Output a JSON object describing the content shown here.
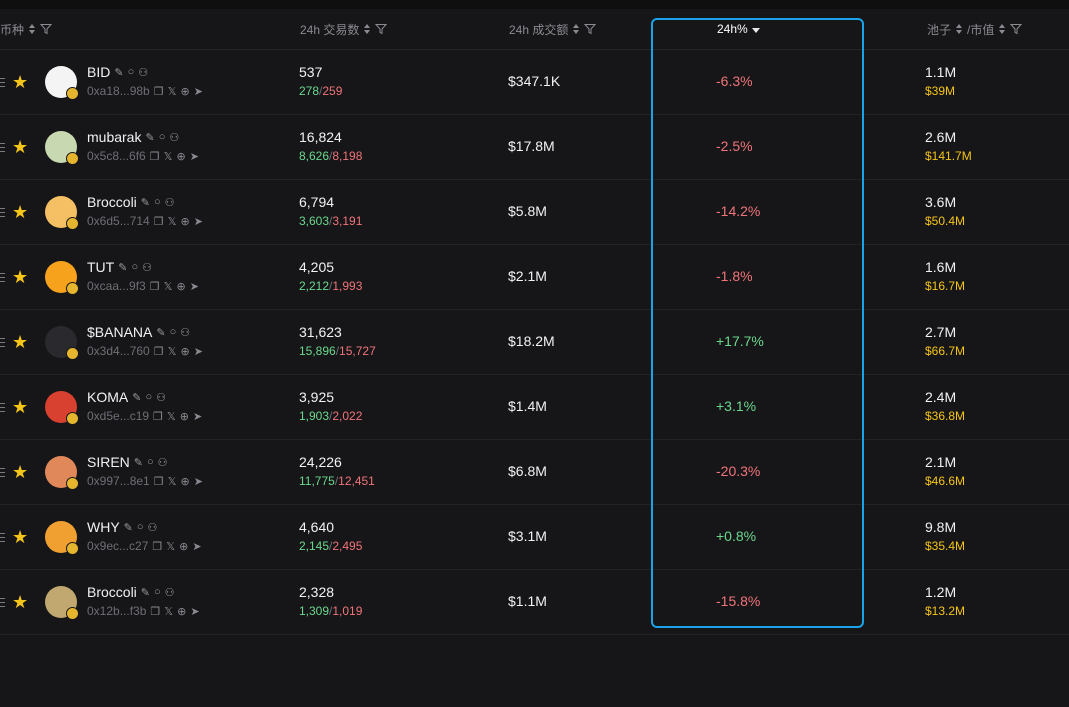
{
  "header": {
    "coin_label": "币种",
    "tx_label": "24h 交易数",
    "vol_label": "24h 成交额",
    "change_label": "24h%",
    "pool_label": "池子",
    "mcap_label": "/市值"
  },
  "colors": {
    "accent": "#1aa3e8",
    "positive": "#6bd88e",
    "negative": "#f0747a",
    "gold": "#f5c518"
  },
  "rows": [
    {
      "name": "BID",
      "addr": "0xa18...98b",
      "tx": "537",
      "buys": "278",
      "sells": "259",
      "vol": "$347.1K",
      "chg": "-6.3%",
      "pool": "1.1M",
      "mcap": "$39M",
      "dir": "down"
    },
    {
      "name": "mubarak",
      "addr": "0x5c8...6f6",
      "tx": "16,824",
      "buys": "8,626",
      "sells": "8,198",
      "vol": "$17.8M",
      "chg": "-2.5%",
      "pool": "2.6M",
      "mcap": "$141.7M",
      "dir": "down"
    },
    {
      "name": "Broccoli",
      "addr": "0x6d5...714",
      "tx": "6,794",
      "buys": "3,603",
      "sells": "3,191",
      "vol": "$5.8M",
      "chg": "-14.2%",
      "pool": "3.6M",
      "mcap": "$50.4M",
      "dir": "down"
    },
    {
      "name": "TUT",
      "addr": "0xcaa...9f3",
      "tx": "4,205",
      "buys": "2,212",
      "sells": "1,993",
      "vol": "$2.1M",
      "chg": "-1.8%",
      "pool": "1.6M",
      "mcap": "$16.7M",
      "dir": "down"
    },
    {
      "name": "$BANANA",
      "addr": "0x3d4...760",
      "tx": "31,623",
      "buys": "15,896",
      "sells": "15,727",
      "vol": "$18.2M",
      "chg": "+17.7%",
      "pool": "2.7M",
      "mcap": "$66.7M",
      "dir": "up"
    },
    {
      "name": "KOMA",
      "addr": "0xd5e...c19",
      "tx": "3,925",
      "buys": "1,903",
      "sells": "2,022",
      "vol": "$1.4M",
      "chg": "+3.1%",
      "pool": "2.4M",
      "mcap": "$36.8M",
      "dir": "up"
    },
    {
      "name": "SIREN",
      "addr": "0x997...8e1",
      "tx": "24,226",
      "buys": "11,775",
      "sells": "12,451",
      "vol": "$6.8M",
      "chg": "-20.3%",
      "pool": "2.1M",
      "mcap": "$46.6M",
      "dir": "down"
    },
    {
      "name": "WHY",
      "addr": "0x9ec...c27",
      "tx": "4,640",
      "buys": "2,145",
      "sells": "2,495",
      "vol": "$3.1M",
      "chg": "+0.8%",
      "pool": "9.8M",
      "mcap": "$35.4M",
      "dir": "up"
    },
    {
      "name": "Broccoli",
      "addr": "0x12b...f3b",
      "tx": "2,328",
      "buys": "1,309",
      "sells": "1,019",
      "vol": "$1.1M",
      "chg": "-15.8%",
      "pool": "1.2M",
      "mcap": "$13.2M",
      "dir": "down"
    }
  ]
}
